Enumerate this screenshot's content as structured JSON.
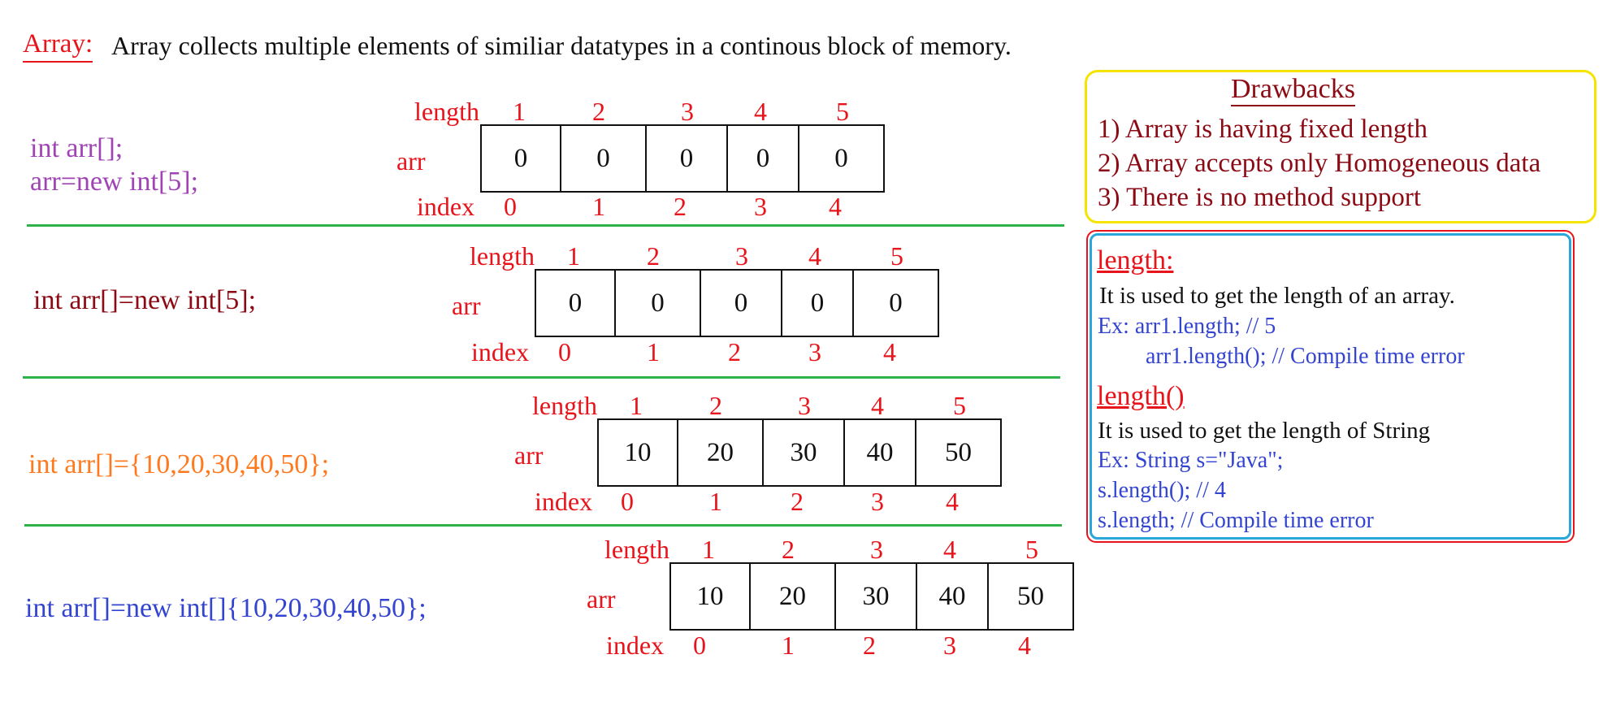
{
  "header": {
    "term": "Array:",
    "definition": "Array collects multiple elements of similiar datatypes in a continous block of memory."
  },
  "labels": {
    "length": "length",
    "arr": "arr",
    "index": "index"
  },
  "rows": [
    {
      "code": [
        "int arr[];",
        "arr=new int[5];"
      ],
      "code_color": "#a043b5",
      "lengths": [
        "1",
        "2",
        "3",
        "4",
        "5"
      ],
      "values": [
        "0",
        "0",
        "0",
        "0",
        "0"
      ],
      "indices": [
        "0",
        "1",
        "2",
        "3",
        "4"
      ]
    },
    {
      "code": [
        "int arr[]=new int[5];"
      ],
      "code_color": "#8b0a14",
      "lengths": [
        "1",
        "2",
        "3",
        "4",
        "5"
      ],
      "values": [
        "0",
        "0",
        "0",
        "0",
        "0"
      ],
      "indices": [
        "0",
        "1",
        "2",
        "3",
        "4"
      ]
    },
    {
      "code": [
        "int arr[]={10,20,30,40,50};"
      ],
      "code_color": "#ff7a1f",
      "lengths": [
        "1",
        "2",
        "3",
        "4",
        "5"
      ],
      "values": [
        "10",
        "20",
        "30",
        "40",
        "50"
      ],
      "indices": [
        "0",
        "1",
        "2",
        "3",
        "4"
      ]
    },
    {
      "code": [
        "int arr[]=new int[]{10,20,30,40,50};"
      ],
      "code_color": "#3344d0",
      "lengths": [
        "1",
        "2",
        "3",
        "4",
        "5"
      ],
      "values": [
        "10",
        "20",
        "30",
        "40",
        "50"
      ],
      "indices": [
        "0",
        "1",
        "2",
        "3",
        "4"
      ]
    }
  ],
  "drawbacks": {
    "title": "Drawbacks",
    "items": [
      "1) Array is having fixed length",
      "2) Array accepts only Homogeneous data",
      "3) There is no method support"
    ]
  },
  "length_info": {
    "length_head": "length:",
    "length_desc": "It is used to get the length of an array.",
    "length_ex1": "Ex: arr1.length; // 5",
    "length_ex2": "arr1.length(); // Compile time error",
    "method_head": "length()",
    "method_desc": "It is used to get the length of String",
    "method_ex1": "Ex: String s=\"Java\";",
    "method_ex2": "s.length(); // 4",
    "method_ex3": "s.length; // Compile time error"
  },
  "colors": {
    "label_red": "#e8141b",
    "separator_green": "#2db34a",
    "drawbacks_border": "#f5e400",
    "info_border_outer": "#e8141b",
    "info_border_inner": "#2aa7d8"
  }
}
